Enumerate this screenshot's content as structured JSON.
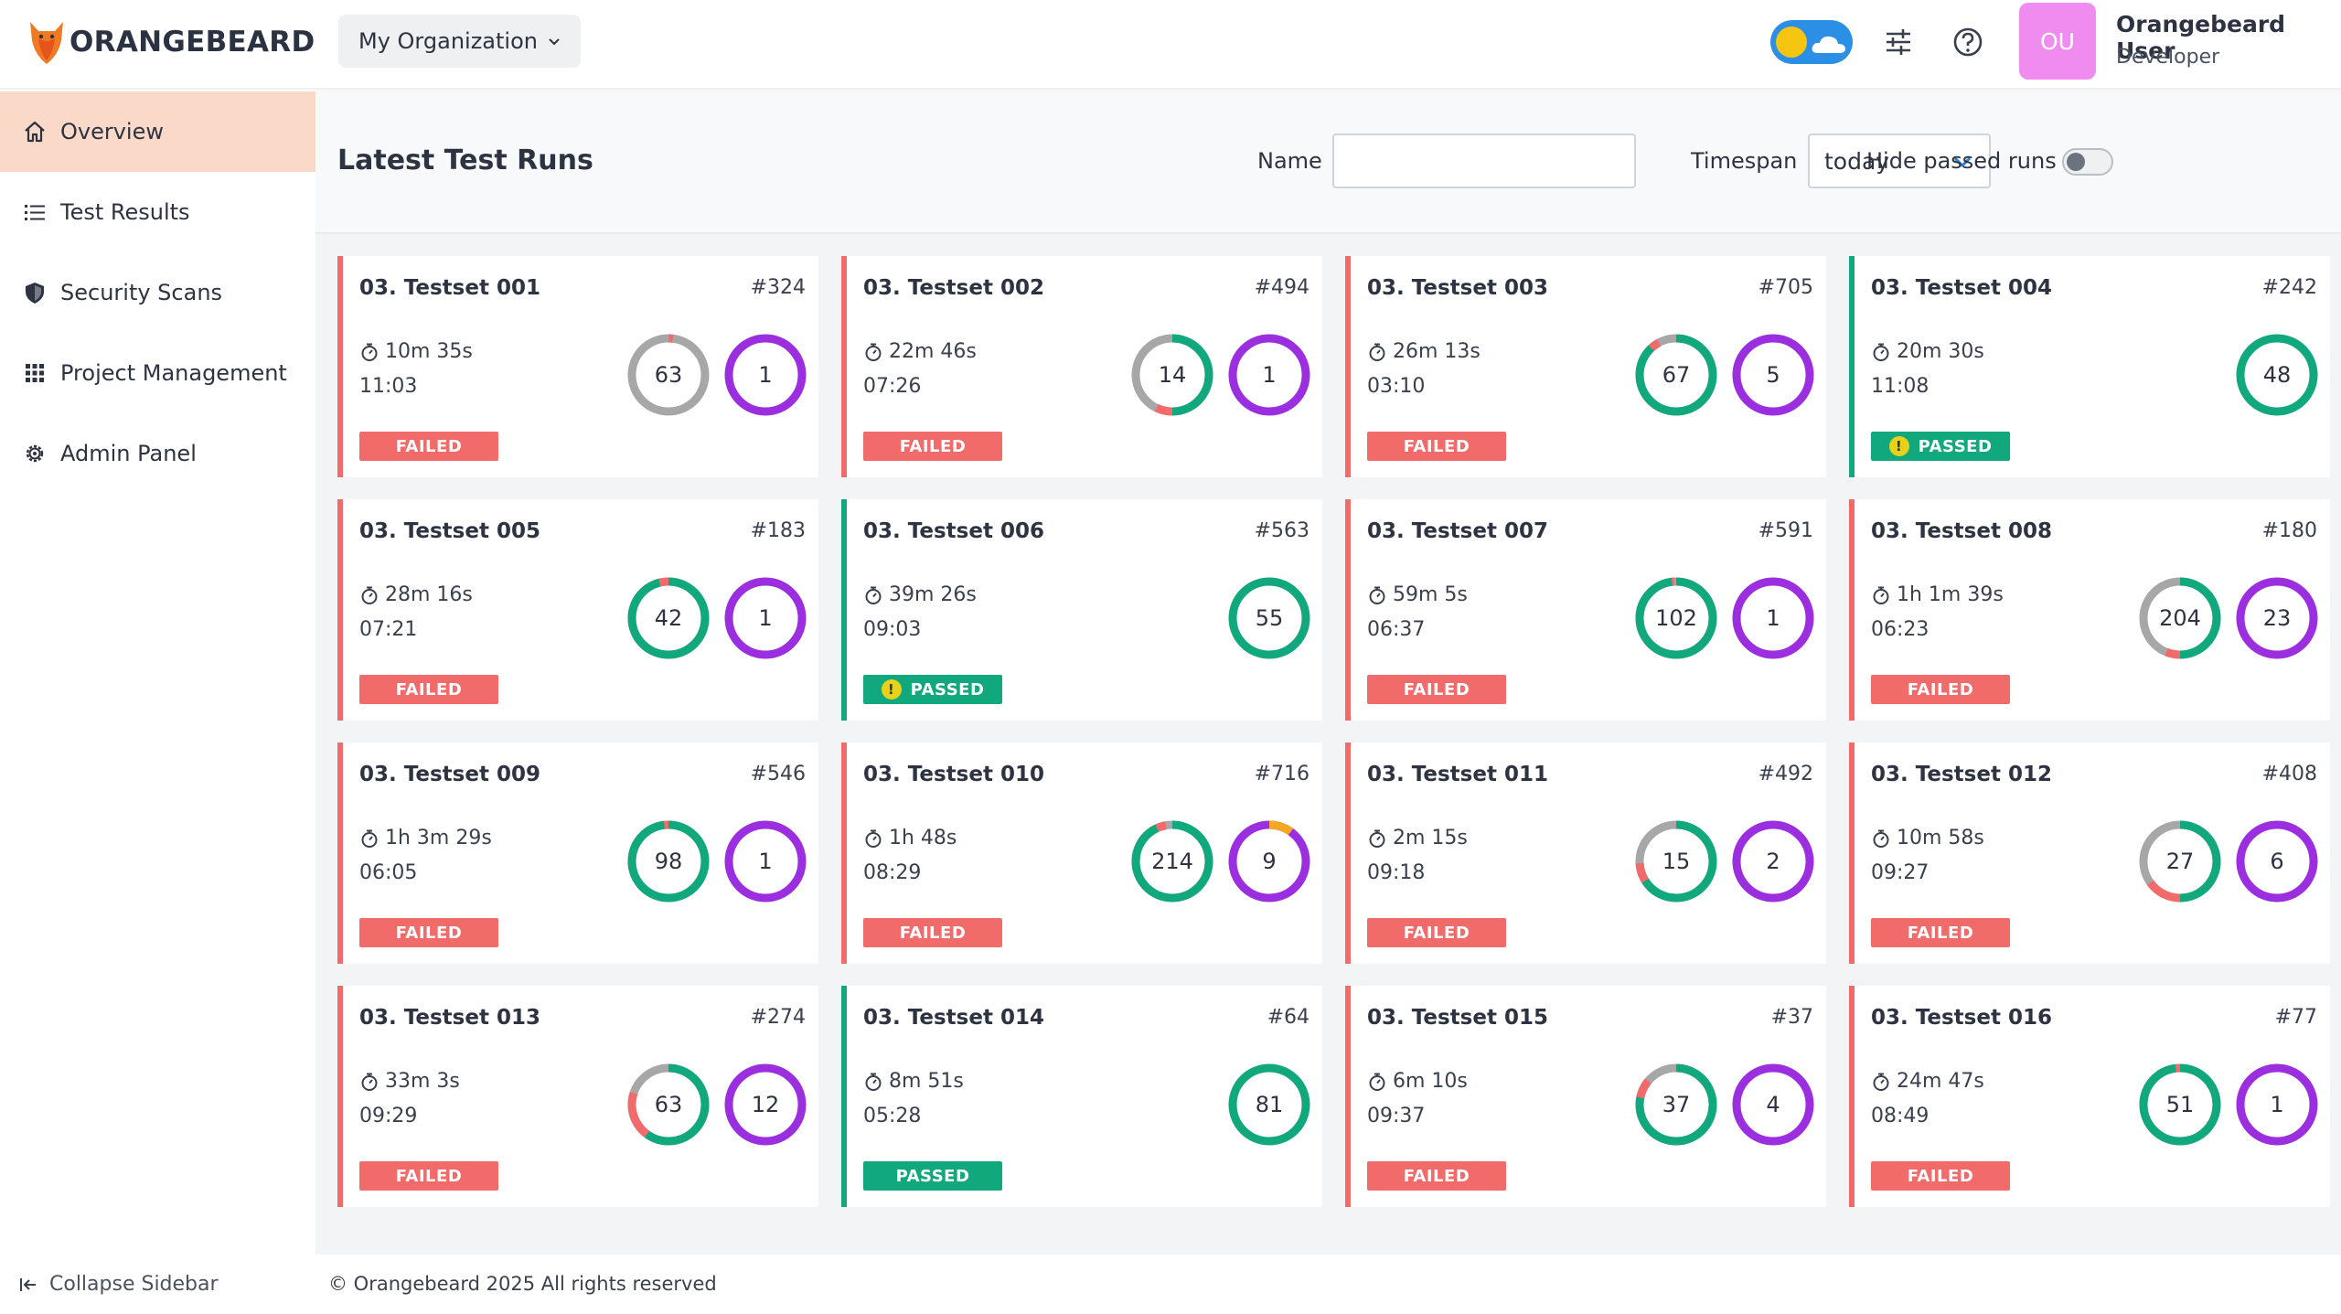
{
  "brand": {
    "name": "ORANGEBEARD"
  },
  "header": {
    "org_label": "My Organization",
    "avatar_initials": "OU",
    "user_name": "Orangebeard User",
    "user_role": "Developer"
  },
  "sidebar": {
    "items": [
      {
        "label": "Overview",
        "icon": "home-icon"
      },
      {
        "label": "Test Results",
        "icon": "list-icon"
      },
      {
        "label": "Security Scans",
        "icon": "shield-icon"
      },
      {
        "label": "Project Management",
        "icon": "grid-icon"
      },
      {
        "label": "Admin Panel",
        "icon": "gear-icon"
      }
    ],
    "collapse_label": "Collapse Sidebar"
  },
  "toolbar": {
    "title": "Latest Test Runs",
    "name_label": "Name",
    "name_value": "",
    "timespan_label": "Timespan",
    "timespan_value": "today",
    "hide_passed_label": "Hide passed runs",
    "hide_passed_on": false
  },
  "colors": {
    "failed": "#f26b6b",
    "passed": "#12a87e",
    "skipped": "#a7a7a7",
    "warning": "#f5a623",
    "defects": "#9b2fe0",
    "accent": "#fbd9c8"
  },
  "runs": [
    {
      "name": "03. Testset 001",
      "number": "#324",
      "duration": "10m 35s",
      "time": "11:03",
      "status": "FAILED",
      "total": "63",
      "passed_frac": 0.0,
      "failed_frac": 0.02,
      "warn_frac": 0,
      "defects": "1",
      "defect_warn_frac": 0
    },
    {
      "name": "03. Testset 002",
      "number": "#494",
      "duration": "22m 46s",
      "time": "07:26",
      "status": "FAILED",
      "total": "14",
      "passed_frac": 0.5,
      "failed_frac": 0.07,
      "warn_frac": 0,
      "defects": "1",
      "defect_warn_frac": 0
    },
    {
      "name": "03. Testset 003",
      "number": "#705",
      "duration": "26m 13s",
      "time": "03:10",
      "status": "FAILED",
      "total": "67",
      "passed_frac": 0.88,
      "failed_frac": 0.04,
      "warn_frac": 0,
      "defects": "5",
      "defect_warn_frac": 0
    },
    {
      "name": "03. Testset 004",
      "number": "#242",
      "duration": "20m 30s",
      "time": "11:08",
      "status": "PASSED",
      "warn_badge": true,
      "total": "48",
      "passed_frac": 1.0,
      "failed_frac": 0,
      "warn_frac": 0,
      "defects": "",
      "defect_warn_frac": 0
    },
    {
      "name": "03. Testset 005",
      "number": "#183",
      "duration": "28m 16s",
      "time": "07:21",
      "status": "FAILED",
      "total": "42",
      "passed_frac": 0.96,
      "failed_frac": 0.04,
      "warn_frac": 0,
      "defects": "1",
      "defect_warn_frac": 0
    },
    {
      "name": "03. Testset 006",
      "number": "#563",
      "duration": "39m 26s",
      "time": "09:03",
      "status": "PASSED",
      "warn_badge": true,
      "total": "55",
      "passed_frac": 1.0,
      "failed_frac": 0,
      "warn_frac": 0,
      "defects": "",
      "defect_warn_frac": 0
    },
    {
      "name": "03. Testset 007",
      "number": "#591",
      "duration": "59m 5s",
      "time": "06:37",
      "status": "FAILED",
      "total": "102",
      "passed_frac": 0.98,
      "failed_frac": 0.01,
      "warn_frac": 0,
      "defects": "1",
      "defect_warn_frac": 0
    },
    {
      "name": "03. Testset 008",
      "number": "#180",
      "duration": "1h 1m 39s",
      "time": "06:23",
      "status": "FAILED",
      "total": "204",
      "passed_frac": 0.5,
      "failed_frac": 0.06,
      "warn_frac": 0,
      "defects": "23",
      "defect_warn_frac": 0
    },
    {
      "name": "03. Testset 009",
      "number": "#546",
      "duration": "1h 3m 29s",
      "time": "06:05",
      "status": "FAILED",
      "total": "98",
      "passed_frac": 0.98,
      "failed_frac": 0.02,
      "warn_frac": 0,
      "defects": "1",
      "defect_warn_frac": 0
    },
    {
      "name": "03. Testset 010",
      "number": "#716",
      "duration": "1h 48s",
      "time": "08:29",
      "status": "FAILED",
      "total": "214",
      "passed_frac": 0.93,
      "failed_frac": 0.04,
      "warn_frac": 0,
      "defects": "9",
      "defect_warn_frac": 0.1
    },
    {
      "name": "03. Testset 011",
      "number": "#492",
      "duration": "2m 15s",
      "time": "09:18",
      "status": "FAILED",
      "total": "15",
      "passed_frac": 0.66,
      "failed_frac": 0.08,
      "warn_frac": 0,
      "defects": "2",
      "defect_warn_frac": 0
    },
    {
      "name": "03. Testset 012",
      "number": "#408",
      "duration": "10m 58s",
      "time": "09:27",
      "status": "FAILED",
      "total": "27",
      "passed_frac": 0.5,
      "failed_frac": 0.15,
      "warn_frac": 0,
      "defects": "6",
      "defect_warn_frac": 0
    },
    {
      "name": "03. Testset 013",
      "number": "#274",
      "duration": "33m 3s",
      "time": "09:29",
      "status": "FAILED",
      "total": "63",
      "passed_frac": 0.6,
      "failed_frac": 0.2,
      "warn_frac": 0,
      "defects": "12",
      "defect_warn_frac": 0
    },
    {
      "name": "03. Testset 014",
      "number": "#64",
      "duration": "8m 51s",
      "time": "05:28",
      "status": "PASSED",
      "warn_badge": false,
      "total": "81",
      "passed_frac": 1.0,
      "failed_frac": 0,
      "warn_frac": 0,
      "defects": "",
      "defect_warn_frac": 0
    },
    {
      "name": "03. Testset 015",
      "number": "#37",
      "duration": "6m 10s",
      "time": "09:37",
      "status": "FAILED",
      "total": "37",
      "passed_frac": 0.78,
      "failed_frac": 0.08,
      "warn_frac": 0,
      "defects": "4",
      "defect_warn_frac": 0
    },
    {
      "name": "03. Testset 016",
      "number": "#77",
      "duration": "24m 47s",
      "time": "08:49",
      "status": "FAILED",
      "total": "51",
      "passed_frac": 0.98,
      "failed_frac": 0.02,
      "warn_frac": 0,
      "defects": "1",
      "defect_warn_frac": 0
    }
  ],
  "footer": {
    "copyright": "© Orangebeard 2025 All rights reserved"
  }
}
